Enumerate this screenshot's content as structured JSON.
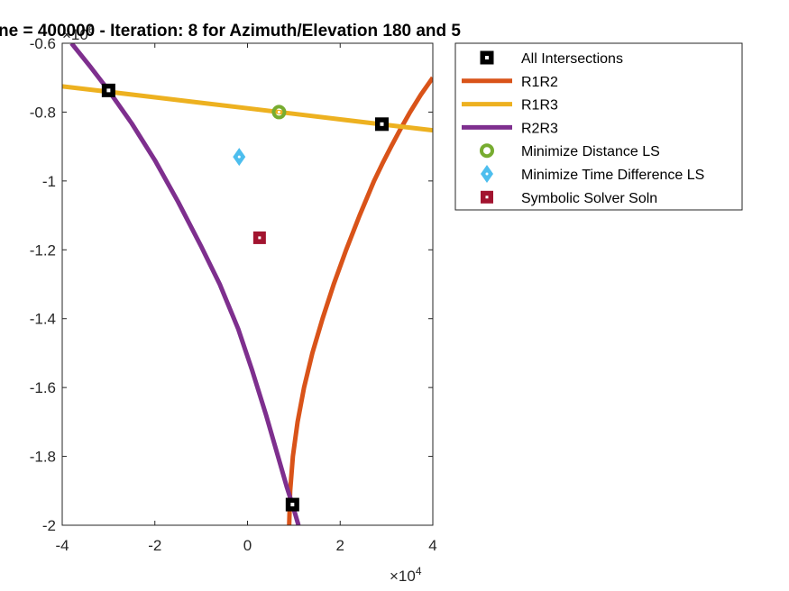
{
  "chart_data": {
    "type": "line",
    "title": "ne = 400000 - Iteration: 8 for Azimuth/Elevation 180 and 5",
    "xlabel": "",
    "ylabel": "",
    "xlim": [
      -40000,
      40000
    ],
    "ylim": [
      -2000000,
      -600000
    ],
    "x_ticks": [
      -40000,
      -20000,
      0,
      20000,
      40000
    ],
    "x_tick_labels": [
      "-4",
      "-2",
      "0",
      "2",
      "4"
    ],
    "x_exponent": "×10",
    "x_exponent_power": "4",
    "y_ticks": [
      -600000,
      -800000,
      -1000000,
      -1200000,
      -1400000,
      -1600000,
      -1800000,
      -2000000
    ],
    "y_tick_labels": [
      "-0.6",
      "-0.8",
      "-1",
      "-1.2",
      "-1.4",
      "-1.6",
      "-1.8",
      "-2"
    ],
    "y_exponent": "×10",
    "y_exponent_power": "6",
    "grid": false,
    "legend_position": "outside-top-right",
    "series": [
      {
        "name": "R1R2",
        "color": "#D95319",
        "points": [
          [
            9000,
            -2000000
          ],
          [
            9200,
            -1900000
          ],
          [
            9800,
            -1800000
          ],
          [
            10800,
            -1700000
          ],
          [
            12200,
            -1600000
          ],
          [
            14000,
            -1500000
          ],
          [
            16200,
            -1400000
          ],
          [
            18600,
            -1300000
          ],
          [
            21300,
            -1200000
          ],
          [
            24200,
            -1100000
          ],
          [
            27300,
            -1000000
          ],
          [
            29100,
            -950000
          ],
          [
            31000,
            -900000
          ],
          [
            33000,
            -850000
          ],
          [
            35100,
            -800000
          ],
          [
            37400,
            -750000
          ],
          [
            40000,
            -700000
          ]
        ]
      },
      {
        "name": "R1R3",
        "color": "#EDB120",
        "points": [
          [
            -40000,
            -725000
          ],
          [
            -30000,
            -741000
          ],
          [
            -20000,
            -757000
          ],
          [
            -10000,
            -773000
          ],
          [
            0,
            -789000
          ],
          [
            10000,
            -805000
          ],
          [
            20000,
            -821000
          ],
          [
            30000,
            -837000
          ],
          [
            40000,
            -853000
          ]
        ]
      },
      {
        "name": "R2R3",
        "color": "#7E2F8E",
        "points": [
          [
            -38000,
            -600000
          ],
          [
            -34000,
            -667000
          ],
          [
            -30000,
            -737000
          ],
          [
            -25000,
            -833000
          ],
          [
            -20000,
            -940000
          ],
          [
            -15000,
            -1060000
          ],
          [
            -10000,
            -1190000
          ],
          [
            -6000,
            -1300000
          ],
          [
            -2000,
            -1430000
          ],
          [
            1000,
            -1550000
          ],
          [
            4000,
            -1680000
          ],
          [
            7000,
            -1820000
          ],
          [
            8500,
            -1890000
          ],
          [
            9700,
            -1940000
          ],
          [
            11000,
            -2000000
          ]
        ]
      }
    ],
    "markers": [
      {
        "name": "All Intersections",
        "symbol": "square",
        "color": "#000000",
        "points": [
          [
            -30000,
            -737000
          ],
          [
            29000,
            -835000
          ],
          [
            9700,
            -1940000
          ]
        ]
      },
      {
        "name": "Minimize Distance LS",
        "symbol": "circle",
        "color": "#77AC30",
        "points": [
          [
            6800,
            -800000
          ]
        ]
      },
      {
        "name": "Minimize Time Difference LS",
        "symbol": "diamond",
        "color": "#4DBEEE",
        "points": [
          [
            -1800,
            -930000
          ]
        ]
      },
      {
        "name": "Symbolic Solver Soln",
        "symbol": "square-small",
        "color": "#A2142F",
        "points": [
          [
            2600,
            -1165000
          ]
        ]
      }
    ]
  }
}
